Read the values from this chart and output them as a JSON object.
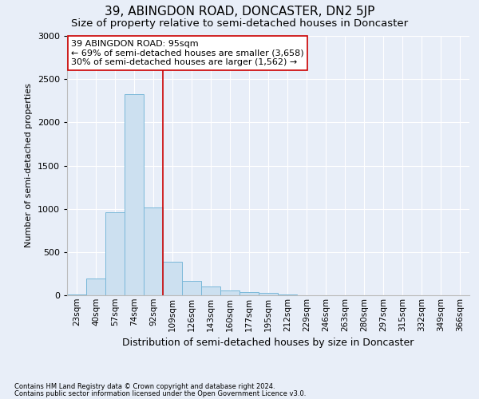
{
  "title": "39, ABINGDON ROAD, DONCASTER, DN2 5JP",
  "subtitle": "Size of property relative to semi-detached houses in Doncaster",
  "xlabel": "Distribution of semi-detached houses by size in Doncaster",
  "ylabel": "Number of semi-detached properties",
  "footer1": "Contains HM Land Registry data © Crown copyright and database right 2024.",
  "footer2": "Contains public sector information licensed under the Open Government Licence v3.0.",
  "annotation_title": "39 ABINGDON ROAD: 95sqm",
  "annotation_line1": "← 69% of semi-detached houses are smaller (3,658)",
  "annotation_line2": "30% of semi-detached houses are larger (1,562) →",
  "bar_categories": [
    "23sqm",
    "40sqm",
    "57sqm",
    "74sqm",
    "92sqm",
    "109sqm",
    "126sqm",
    "143sqm",
    "160sqm",
    "177sqm",
    "195sqm",
    "212sqm",
    "229sqm",
    "246sqm",
    "263sqm",
    "280sqm",
    "297sqm",
    "315sqm",
    "332sqm",
    "349sqm",
    "366sqm"
  ],
  "bar_values": [
    10,
    190,
    960,
    2330,
    1020,
    390,
    170,
    100,
    60,
    35,
    25,
    5,
    0,
    0,
    0,
    0,
    0,
    0,
    0,
    0,
    0
  ],
  "bar_color": "#cce0f0",
  "bar_edge_color": "#7ab8d9",
  "vline_color": "#cc0000",
  "vline_x_index": 4.5,
  "ylim": [
    0,
    3000
  ],
  "yticks": [
    0,
    500,
    1000,
    1500,
    2000,
    2500,
    3000
  ],
  "bg_color": "#e8eef8",
  "plot_bg_color": "#e8eef8",
  "grid_color": "#ffffff",
  "title_fontsize": 11,
  "subtitle_fontsize": 9.5,
  "ylabel_fontsize": 8,
  "xlabel_fontsize": 9,
  "tick_fontsize": 7.5,
  "ytick_fontsize": 8,
  "annotation_fontsize": 8,
  "annotation_box_color": "#ffffff",
  "annotation_box_edge": "#cc0000",
  "footer_fontsize": 6
}
